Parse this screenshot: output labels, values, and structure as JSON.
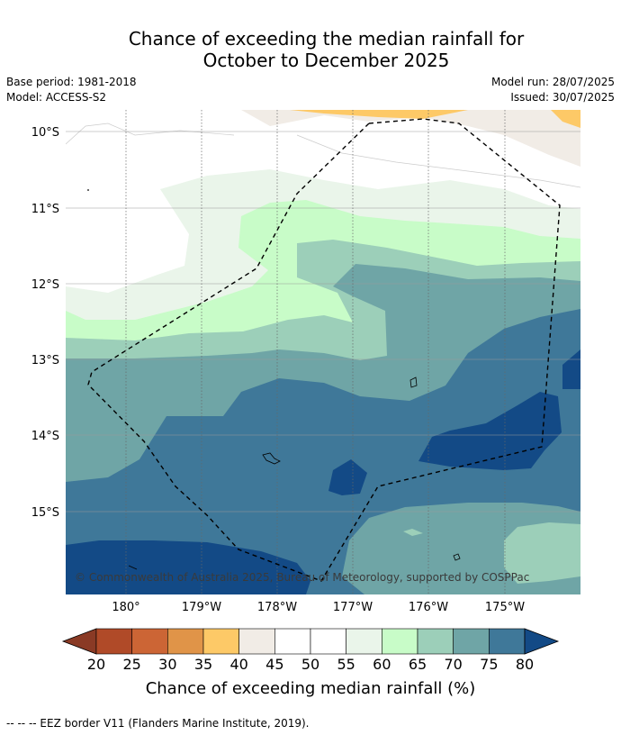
{
  "title": {
    "line1": "Chance of exceeding the median rainfall for",
    "line2": "October to December 2025"
  },
  "meta_left": {
    "base_period": "Base period: 1981-2018",
    "model": "Model: ACCESS-S2"
  },
  "meta_right": {
    "model_run": "Model run: 28/07/2025",
    "issued": "Issued: 30/07/2025"
  },
  "map": {
    "lat_labels": [
      "10°S",
      "11°S",
      "12°S",
      "13°S",
      "14°S",
      "15°S"
    ],
    "lon_labels": [
      "180°",
      "179°W",
      "178°W",
      "177°W",
      "176°W",
      "175°W"
    ],
    "copyright": "© Commonwealth of Australia 2025, Bureau of Meteorology, supported by COSPPac"
  },
  "colorbar": {
    "ticks": [
      "20",
      "25",
      "30",
      "35",
      "40",
      "45",
      "50",
      "55",
      "60",
      "65",
      "70",
      "75",
      "80"
    ],
    "colors": {
      "below20": "#8a3a25",
      "b20_25": "#b04a28",
      "b25_30": "#cc6535",
      "b30_35": "#e09448",
      "b35_40": "#fdc967",
      "b40_45": "#f1ece6",
      "b45_50": "#ffffff",
      "b50_55": "#ffffff",
      "b55_60": "#eaf5ea",
      "b60_65": "#c8fcc8",
      "b65_70": "#9ccfb9",
      "b70_75": "#6fa5a6",
      "b75_80": "#3f7899",
      "above80": "#134a86"
    },
    "label": "Chance of exceeding median rainfall (%)"
  },
  "footer": {
    "legend_text": "--  --  -- EEZ border V11 (Flanders Marine Institute, 2019)."
  }
}
